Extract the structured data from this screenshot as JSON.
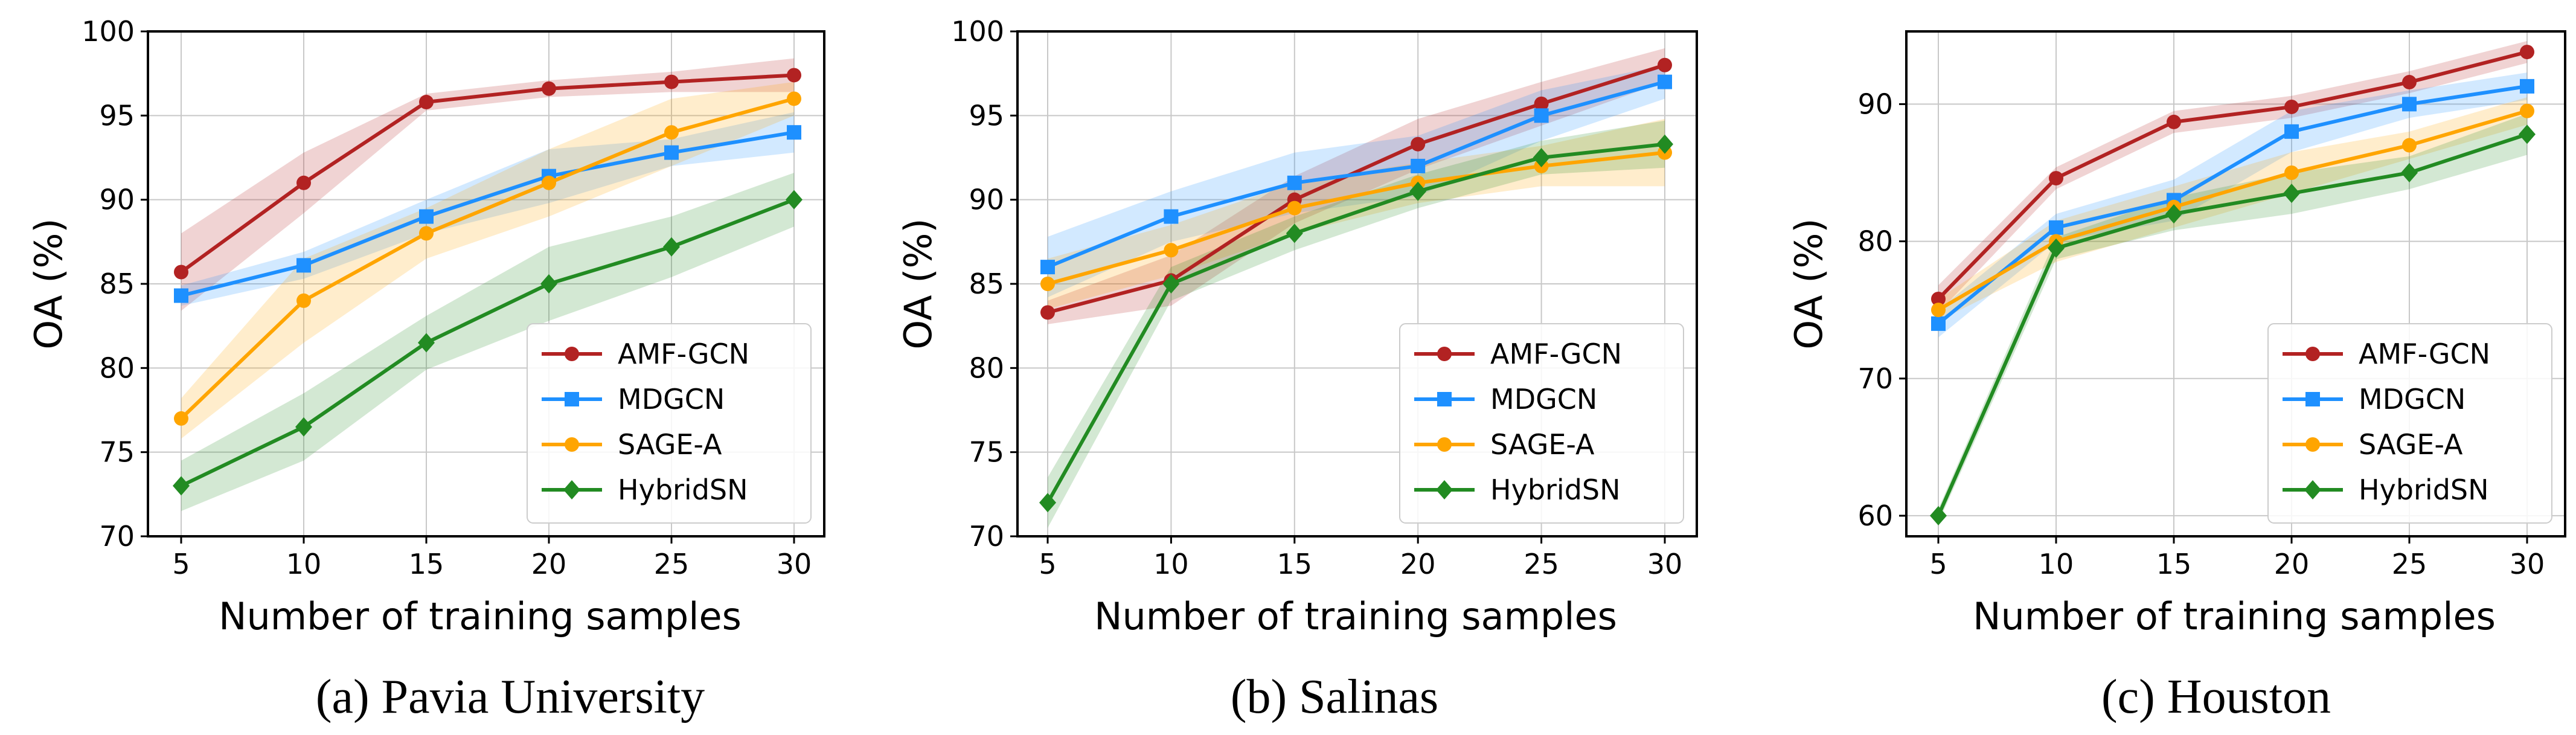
{
  "colors": {
    "AMF-GCN": "#b22222",
    "MDGCN": "#1e90ff",
    "SAGE-A": "#ffa500",
    "HybridSN": "#228b22"
  },
  "markers": {
    "AMF-GCN": "circle",
    "MDGCN": "square",
    "SAGE-A": "circle",
    "HybridSN": "diamond"
  },
  "chart_data": [
    {
      "type": "line",
      "caption": "(a) Pavia University",
      "xlabel": "Number of training samples",
      "ylabel": "OA (%)",
      "x": [
        5,
        10,
        15,
        20,
        25,
        30
      ],
      "xticks": [
        "5",
        "10",
        "15",
        "20",
        "25",
        "30"
      ],
      "yticks": [
        "70",
        "75",
        "80",
        "85",
        "90",
        "95",
        "100"
      ],
      "ylim": [
        70,
        100
      ],
      "grid": true,
      "legend_position": "lower-right",
      "series": [
        {
          "name": "AMF-GCN",
          "values": [
            85.7,
            91.0,
            95.8,
            96.6,
            97.0,
            97.4
          ],
          "band": [
            2.3,
            1.8,
            0.5,
            0.5,
            0.6,
            1.0
          ]
        },
        {
          "name": "MDGCN",
          "values": [
            84.3,
            86.1,
            89.0,
            91.4,
            92.8,
            94.0
          ],
          "band": [
            0.6,
            0.8,
            1.0,
            1.6,
            0.8,
            1.2
          ]
        },
        {
          "name": "SAGE-A",
          "values": [
            77.0,
            84.0,
            88.0,
            91.0,
            94.0,
            96.0
          ],
          "band": [
            1.2,
            2.5,
            1.5,
            2.0,
            2.0,
            1.0
          ]
        },
        {
          "name": "HybridSN",
          "values": [
            73.0,
            76.5,
            81.5,
            85.0,
            87.2,
            90.0
          ],
          "band": [
            1.5,
            2.0,
            1.6,
            2.2,
            1.8,
            1.6
          ]
        }
      ]
    },
    {
      "type": "line",
      "caption": "(b) Salinas",
      "xlabel": "Number of training samples",
      "ylabel": "OA (%)",
      "x": [
        5,
        10,
        15,
        20,
        25,
        30
      ],
      "xticks": [
        "5",
        "10",
        "15",
        "20",
        "25",
        "30"
      ],
      "yticks": [
        "70",
        "75",
        "80",
        "85",
        "90",
        "95",
        "100"
      ],
      "ylim": [
        70,
        100
      ],
      "grid": true,
      "legend_position": "lower-right",
      "series": [
        {
          "name": "AMF-GCN",
          "values": [
            83.3,
            85.2,
            90.0,
            93.3,
            95.7,
            98.0
          ],
          "band": [
            0.7,
            1.5,
            1.4,
            1.5,
            1.3,
            1.0
          ]
        },
        {
          "name": "MDGCN",
          "values": [
            86.0,
            89.0,
            91.0,
            92.0,
            95.0,
            97.0
          ],
          "band": [
            1.8,
            1.5,
            1.8,
            1.8,
            1.5,
            1.0
          ]
        },
        {
          "name": "SAGE-A",
          "values": [
            85.0,
            87.0,
            89.5,
            91.0,
            92.0,
            92.8
          ],
          "band": [
            1.5,
            1.5,
            1.5,
            1.2,
            1.2,
            2.0
          ]
        },
        {
          "name": "HybridSN",
          "values": [
            72.0,
            85.0,
            88.0,
            90.5,
            92.5,
            93.3
          ],
          "band": [
            1.5,
            1.0,
            1.0,
            1.0,
            1.0,
            1.4
          ]
        }
      ]
    },
    {
      "type": "line",
      "caption": "(c) Houston",
      "xlabel": "Number of training samples",
      "ylabel": "OA (%)",
      "x": [
        5,
        10,
        15,
        20,
        25,
        30
      ],
      "xticks": [
        "5",
        "10",
        "15",
        "20",
        "25",
        "30"
      ],
      "yticks": [
        "60",
        "70",
        "80",
        "90"
      ],
      "ylim": [
        58.5,
        95.3
      ],
      "grid": true,
      "legend_position": "lower-right",
      "series": [
        {
          "name": "AMF-GCN",
          "values": [
            75.8,
            84.6,
            88.7,
            89.8,
            91.6,
            93.8
          ],
          "band": [
            1.0,
            0.8,
            0.8,
            0.8,
            0.8,
            0.8
          ]
        },
        {
          "name": "MDGCN",
          "values": [
            74.0,
            81.0,
            83.0,
            88.0,
            90.0,
            91.3
          ],
          "band": [
            1.0,
            1.0,
            1.5,
            1.5,
            1.0,
            1.0
          ]
        },
        {
          "name": "SAGE-A",
          "values": [
            75.0,
            80.0,
            82.5,
            85.0,
            87.0,
            89.5
          ],
          "band": [
            0.8,
            1.5,
            1.5,
            1.5,
            1.0,
            1.0
          ]
        },
        {
          "name": "HybridSN",
          "values": [
            60.0,
            79.5,
            82.0,
            83.5,
            85.0,
            87.8
          ],
          "band": [
            0.5,
            0.8,
            1.2,
            1.5,
            1.2,
            1.5
          ]
        }
      ]
    }
  ]
}
